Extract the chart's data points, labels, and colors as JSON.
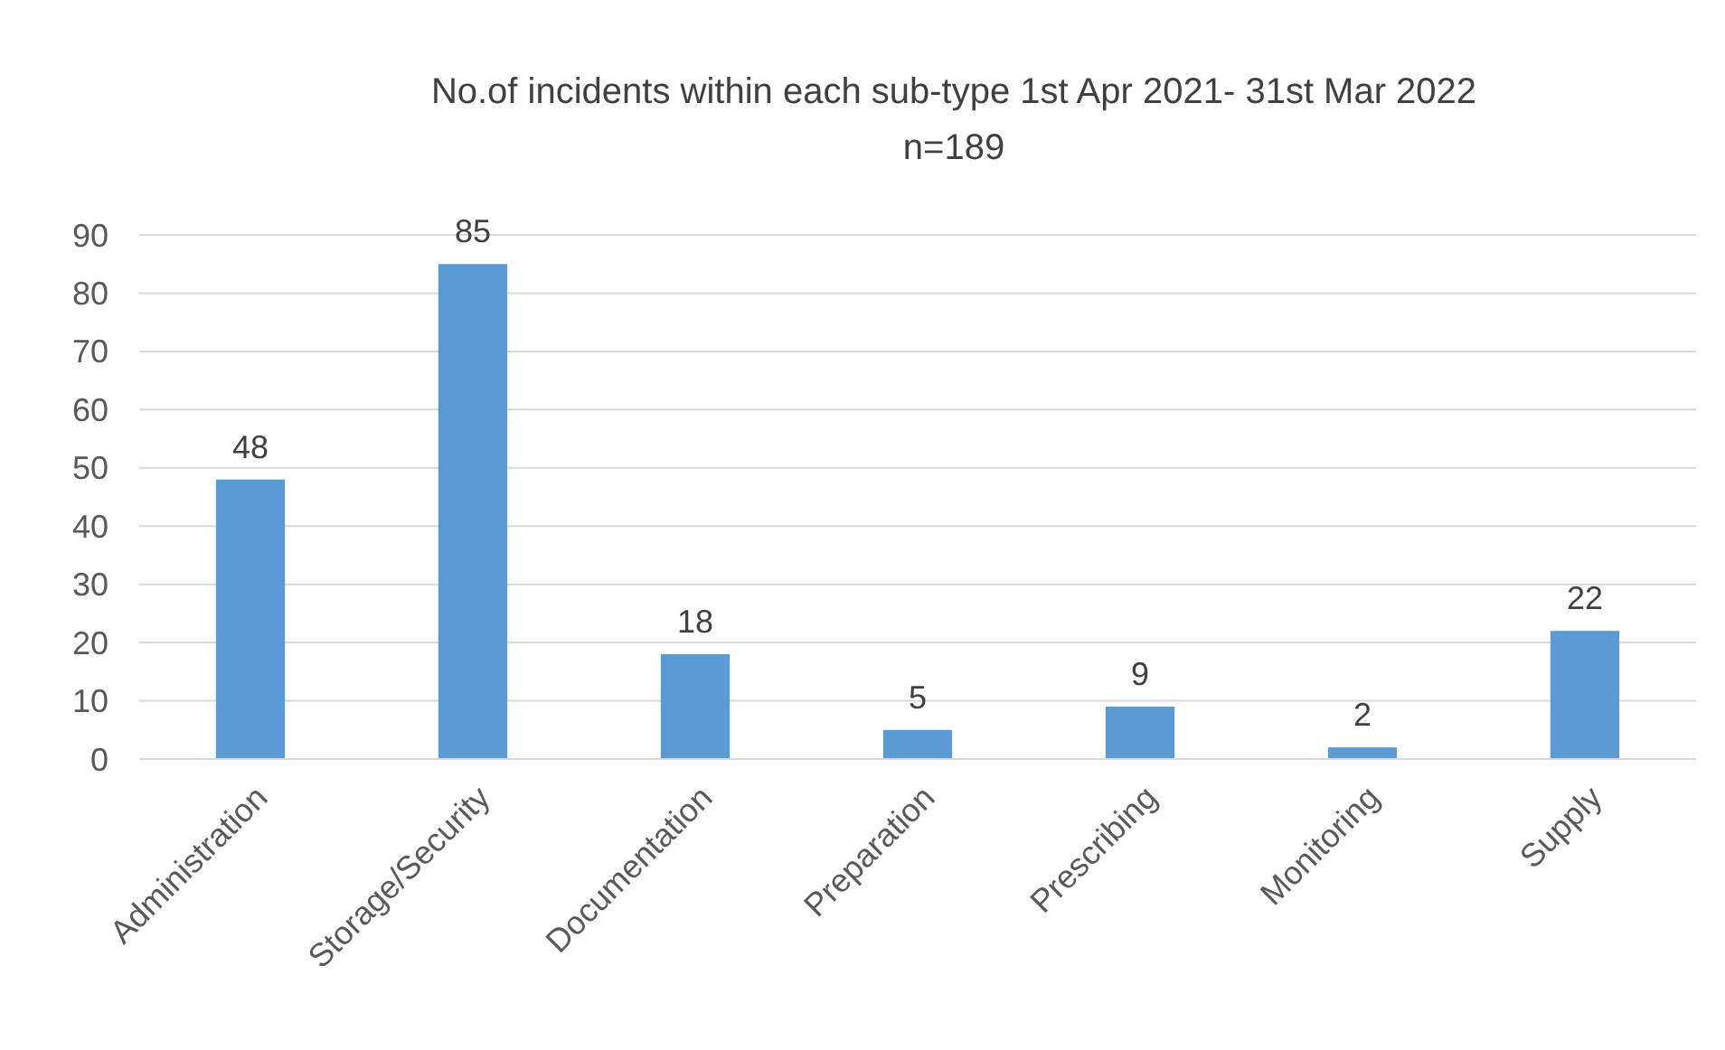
{
  "chart_data": {
    "type": "bar",
    "title": "No.of incidents within each sub-type 1st Apr 2021- 31st Mar 2022",
    "subtitle": "n=189",
    "categories": [
      "Administration",
      "Storage/Security",
      "Documentation",
      "Preparation",
      "Prescribing",
      "Monitoring",
      "Supply"
    ],
    "values": [
      48,
      85,
      18,
      5,
      9,
      2,
      22
    ],
    "color": "#5b9bd5",
    "ylim": [
      0,
      90
    ],
    "yticks": [
      0,
      10,
      20,
      30,
      40,
      50,
      60,
      70,
      80,
      90
    ],
    "grid": "y",
    "data_labels": true
  }
}
